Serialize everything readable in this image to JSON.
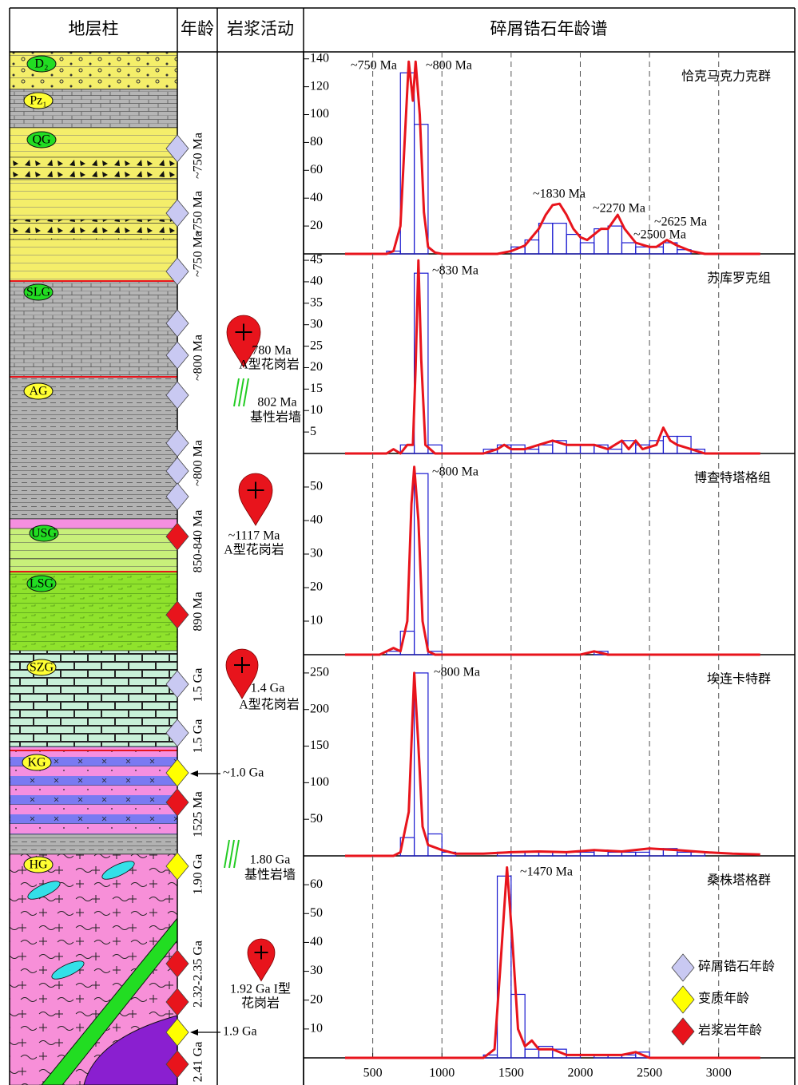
{
  "header": {
    "strat": "地层柱",
    "age": "年龄",
    "magma": "岩浆活动",
    "spectra": "碎屑锆石年龄谱"
  },
  "stratigraphy": {
    "units": [
      "D₂",
      "Pz₁",
      "QG",
      "SLG",
      "AG",
      "USG",
      "LSG",
      "SZG",
      "KG",
      "HG"
    ]
  },
  "ages": [
    "~750 Ma",
    "~750 Ma",
    "~750 Ma",
    "~800 Ma",
    "~800 Ma",
    "850-840 Ma",
    "890 Ma",
    "1.5 Ga",
    "1.5 Ga",
    "1525 Ma",
    "1.90 Ga",
    "2.32-2.35 Ga",
    "2.41 Ga"
  ],
  "magmatism": [
    {
      "age": "780 Ma",
      "rock": "A型花岗岩"
    },
    {
      "age": "802 Ma",
      "rock": "基性岩墙"
    },
    {
      "age": "~1117 Ma",
      "rock": "A型花岗岩"
    },
    {
      "age": "1.4 Ga",
      "rock": "A型花岗岩"
    },
    {
      "age": "1.80 Ga",
      "rock": "基性岩墙"
    },
    {
      "age": "1.92 Ga I型",
      "rock": "花岗岩"
    }
  ],
  "metamorphism": [
    "~1.0 Ga",
    "1.9 Ga"
  ],
  "legend": [
    {
      "label": "碎屑锆石年龄",
      "color": "#c9c9f2"
    },
    {
      "label": "变质年龄",
      "color": "#ffff00"
    },
    {
      "label": "岩浆岩年龄",
      "color": "#e8141c"
    }
  ],
  "chart_data": [
    {
      "type": "histogram",
      "title": "恰克马克力克群",
      "color": "#1a1ad0",
      "bins": [
        500,
        600,
        700,
        800,
        900,
        1000,
        1100,
        1200,
        1300,
        1400,
        1500,
        1600,
        1700,
        1800,
        1900,
        2000,
        2100,
        2200,
        2300,
        2400,
        2500,
        2600,
        2700,
        2800,
        2900,
        3000
      ],
      "counts": [
        0,
        2,
        130,
        93,
        0,
        0,
        0,
        0,
        0,
        0,
        5,
        10,
        22,
        22,
        14,
        8,
        18,
        20,
        8,
        5,
        5,
        8,
        3,
        0,
        0
      ],
      "kde": {
        "color": "#e8141c",
        "x": [
          300,
          600,
          650,
          700,
          730,
          760,
          790,
          810,
          840,
          870,
          900,
          950,
          1000,
          1400,
          1500,
          1600,
          1700,
          1750,
          1800,
          1850,
          1900,
          1950,
          2000,
          2050,
          2100,
          2150,
          2200,
          2270,
          2320,
          2400,
          2500,
          2550,
          2625,
          2700,
          2800,
          2900,
          3300
        ],
        "y": [
          0,
          0,
          2,
          20,
          80,
          138,
          110,
          138,
          100,
          30,
          5,
          1,
          0,
          0,
          2,
          6,
          18,
          28,
          35,
          36,
          28,
          18,
          12,
          10,
          14,
          18,
          18,
          28,
          18,
          8,
          5,
          5,
          10,
          6,
          2,
          0,
          0
        ]
      },
      "annotations": [
        "~750 Ma",
        "~800 Ma",
        "~1830 Ma",
        "~2270 Ma",
        "~2625 Ma",
        "~2500 Ma"
      ],
      "xlim": [
        0,
        3550
      ],
      "xticks": [
        500,
        1000,
        1500,
        2000,
        2500,
        3000
      ],
      "ylim": [
        0,
        145
      ],
      "yticks": [
        20,
        40,
        60,
        80,
        100,
        120,
        140
      ]
    },
    {
      "type": "histogram",
      "title": "苏库罗克组",
      "color": "#1a1ad0",
      "bins": [
        500,
        600,
        700,
        800,
        900,
        1000,
        1100,
        1200,
        1300,
        1400,
        1500,
        1600,
        1700,
        1800,
        1900,
        2000,
        2100,
        2200,
        2300,
        2400,
        2500,
        2600,
        2700,
        2800,
        2900,
        3000
      ],
      "counts": [
        0,
        0,
        2,
        42,
        2,
        0,
        0,
        0,
        1,
        2,
        2,
        1,
        2,
        3,
        2,
        2,
        2,
        1,
        3,
        2,
        3,
        4,
        4,
        1,
        0
      ],
      "kde": {
        "color": "#e8141c",
        "x": [
          300,
          600,
          650,
          700,
          750,
          790,
          810,
          830,
          850,
          880,
          950,
          1300,
          1400,
          1450,
          1500,
          1600,
          1700,
          1800,
          1900,
          2000,
          2100,
          2200,
          2300,
          2350,
          2400,
          2450,
          2550,
          2600,
          2650,
          2700,
          2800,
          2900,
          3300
        ],
        "y": [
          0,
          0,
          1,
          0,
          2,
          2,
          20,
          45,
          22,
          2,
          0,
          0,
          1,
          2,
          1,
          1,
          2,
          3,
          2,
          2,
          2,
          1,
          3,
          1,
          3,
          1,
          2,
          6,
          3,
          2,
          1,
          0,
          0
        ]
      },
      "annotations": [
        "~830 Ma"
      ],
      "xlim": [
        0,
        3550
      ],
      "xticks": [
        500,
        1000,
        1500,
        2000,
        2500,
        3000
      ],
      "ylim": [
        0,
        46.5
      ],
      "yticks": [
        5,
        10,
        15,
        20,
        25,
        30,
        35,
        40,
        45
      ]
    },
    {
      "type": "histogram",
      "title": "博查特塔格组",
      "color": "#1a1ad0",
      "bins": [
        500,
        600,
        700,
        800,
        900,
        1000,
        1100,
        1200,
        1300,
        1400,
        1500,
        1600,
        1700,
        1800,
        1900,
        2000,
        2100,
        2200,
        2300,
        2400,
        2500,
        2600,
        2700,
        2800,
        2900,
        3000
      ],
      "counts": [
        0,
        1,
        7,
        54,
        1,
        0,
        0,
        0,
        0,
        0,
        0,
        0,
        0,
        0,
        0,
        0,
        1,
        0,
        0,
        0,
        0,
        0,
        0,
        0,
        0
      ],
      "kde": {
        "color": "#e8141c",
        "x": [
          300,
          550,
          600,
          650,
          700,
          750,
          780,
          800,
          830,
          860,
          900,
          950,
          2000,
          2100,
          2200,
          3300
        ],
        "y": [
          0,
          0,
          1,
          2,
          1,
          10,
          45,
          56,
          40,
          10,
          1,
          0,
          0,
          1,
          0,
          0
        ]
      },
      "annotations": [
        "~800 Ma"
      ],
      "xlim": [
        0,
        3550
      ],
      "xticks": [
        500,
        1000,
        1500,
        2000,
        2500,
        3000
      ],
      "ylim": [
        0,
        60
      ],
      "yticks": [
        10,
        20,
        30,
        40,
        50
      ]
    },
    {
      "type": "histogram",
      "title": "埃连卡特群",
      "color": "#1a1ad0",
      "bins": [
        500,
        600,
        700,
        800,
        900,
        1000,
        1100,
        1200,
        1300,
        1400,
        1500,
        1600,
        1700,
        1800,
        1900,
        2000,
        2100,
        2200,
        2300,
        2400,
        2500,
        2600,
        2700,
        2800,
        2900,
        3000
      ],
      "counts": [
        0,
        0,
        25,
        250,
        30,
        5,
        0,
        0,
        0,
        5,
        5,
        5,
        5,
        5,
        5,
        5,
        8,
        5,
        5,
        5,
        10,
        10,
        5,
        5,
        0
      ],
      "kde": {
        "color": "#e8141c",
        "x": [
          300,
          650,
          700,
          760,
          800,
          830,
          860,
          900,
          1000,
          1100,
          1300,
          1500,
          1700,
          1900,
          2100,
          2300,
          2500,
          2700,
          2900,
          3100,
          3300
        ],
        "y": [
          0,
          0,
          5,
          60,
          250,
          150,
          40,
          15,
          8,
          3,
          3,
          5,
          6,
          5,
          8,
          6,
          10,
          8,
          5,
          3,
          2
        ]
      },
      "annotations": [
        "~800 Ma"
      ],
      "xlim": [
        0,
        3550
      ],
      "xticks": [
        500,
        1000,
        1500,
        2000,
        2500,
        3000
      ],
      "ylim": [
        0,
        275
      ],
      "yticks": [
        50,
        100,
        150,
        200,
        250
      ]
    },
    {
      "type": "histogram",
      "title": "桑株塔格群",
      "color": "#1a1ad0",
      "bins": [
        500,
        600,
        700,
        800,
        900,
        1000,
        1100,
        1200,
        1300,
        1400,
        1500,
        1600,
        1700,
        1800,
        1900,
        2000,
        2100,
        2200,
        2300,
        2400,
        2500,
        2600,
        2700,
        2800,
        2900,
        3000
      ],
      "counts": [
        0,
        0,
        0,
        0,
        0,
        0,
        0,
        0,
        1,
        63,
        22,
        3,
        4,
        3,
        1,
        0,
        1,
        1,
        1,
        2,
        0,
        0,
        0,
        0,
        0
      ],
      "kde": {
        "color": "#e8141c",
        "x": [
          300,
          1300,
          1380,
          1420,
          1470,
          1510,
          1550,
          1600,
          1650,
          1700,
          1800,
          1900,
          2000,
          2100,
          2200,
          2300,
          2400,
          2500,
          3300
        ],
        "y": [
          0,
          0,
          3,
          30,
          66,
          40,
          10,
          4,
          6,
          3,
          3,
          1,
          1,
          1,
          1,
          1,
          2,
          0,
          0
        ]
      },
      "annotations": [
        "~1470 Ma"
      ],
      "xlim": [
        0,
        3550
      ],
      "xticks": [
        500,
        1000,
        1500,
        2000,
        2500,
        3000
      ],
      "ylim": [
        0,
        70
      ],
      "yticks": [
        10,
        20,
        30,
        40,
        50,
        60
      ]
    }
  ]
}
